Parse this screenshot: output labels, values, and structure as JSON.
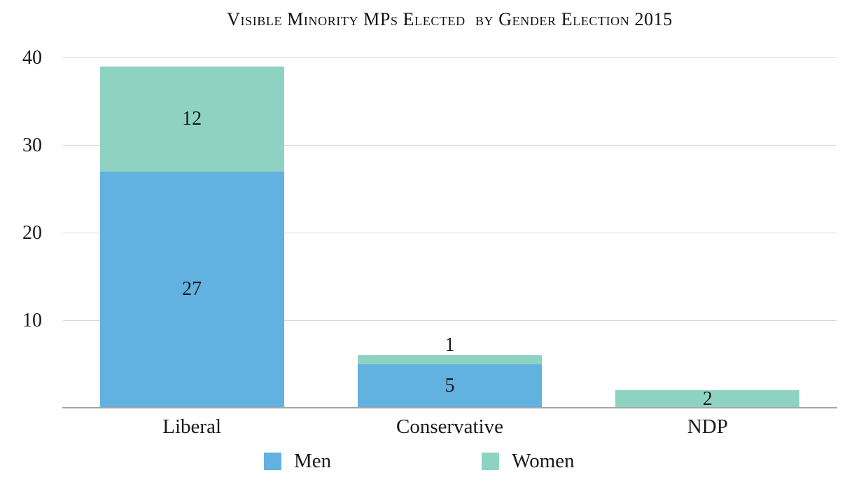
{
  "chart_data": {
    "type": "bar",
    "stacked": true,
    "title": "Visible Minority MPs Elected  by Gender Election 2015",
    "categories": [
      "Liberal",
      "Conservative",
      "NDP"
    ],
    "series": [
      {
        "name": "Men",
        "color": "#61b1e1",
        "values": [
          27,
          5,
          0
        ]
      },
      {
        "name": "Women",
        "color": "#8ed3c2",
        "values": [
          12,
          1,
          2
        ]
      }
    ],
    "xlabel": "",
    "ylabel": "",
    "ylim": [
      0,
      40
    ],
    "yticks": [
      10,
      20,
      30,
      40
    ],
    "grid": true,
    "gridline_color": "#d9d9d9",
    "axis_line_color": "#a6a6a6",
    "text_color": "#1a1a1a",
    "legend_position": "bottom",
    "data_labels": true
  },
  "legend": {
    "items": [
      {
        "label": "Men",
        "color": "#61b1e1"
      },
      {
        "label": "Women",
        "color": "#8ed3c2"
      }
    ]
  }
}
